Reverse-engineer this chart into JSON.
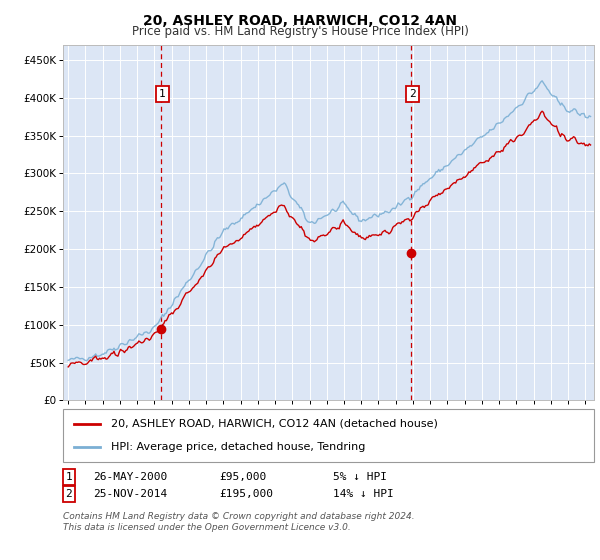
{
  "title": "20, ASHLEY ROAD, HARWICH, CO12 4AN",
  "subtitle": "Price paid vs. HM Land Registry's House Price Index (HPI)",
  "ylabel_ticks": [
    "£0",
    "£50K",
    "£100K",
    "£150K",
    "£200K",
    "£250K",
    "£300K",
    "£350K",
    "£400K",
    "£450K"
  ],
  "ytick_values": [
    0,
    50000,
    100000,
    150000,
    200000,
    250000,
    300000,
    350000,
    400000,
    450000
  ],
  "ylim": [
    0,
    470000
  ],
  "xlim_start": 1994.7,
  "xlim_end": 2025.5,
  "background_color": "#dce6f5",
  "hpi_color": "#7bafd4",
  "price_color": "#cc0000",
  "marker_color": "#cc0000",
  "vline_color": "#cc0000",
  "box_color": "#cc0000",
  "transaction1_x": 2000.4,
  "transaction1_y": 95000,
  "transaction1_label": "1",
  "transaction2_x": 2014.9,
  "transaction2_y": 195000,
  "transaction2_label": "2",
  "legend_label1": "20, ASHLEY ROAD, HARWICH, CO12 4AN (detached house)",
  "legend_label2": "HPI: Average price, detached house, Tendring",
  "ann1_date": "26-MAY-2000",
  "ann1_price": "£95,000",
  "ann1_hpi": "5% ↓ HPI",
  "ann2_date": "25-NOV-2014",
  "ann2_price": "£195,000",
  "ann2_hpi": "14% ↓ HPI",
  "footer": "Contains HM Land Registry data © Crown copyright and database right 2024.\nThis data is licensed under the Open Government Licence v3.0.",
  "title_fontsize": 10,
  "subtitle_fontsize": 8.5,
  "tick_fontsize": 7.5,
  "legend_fontsize": 8,
  "ann_fontsize": 8,
  "footer_fontsize": 6.5
}
